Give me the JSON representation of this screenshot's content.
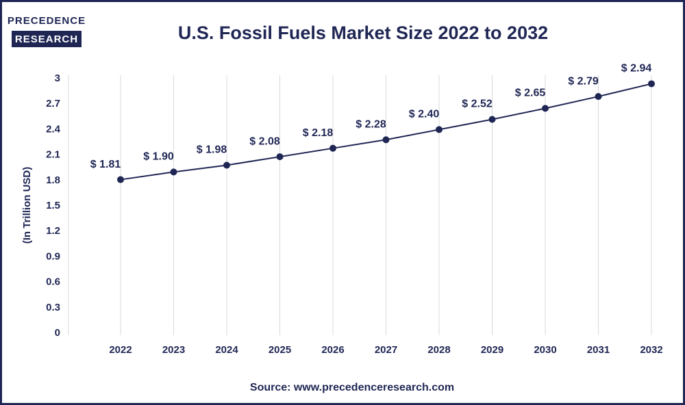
{
  "logo": {
    "top": "PRECEDENCE",
    "bottom": "RESEARCH"
  },
  "source": "Source: www.precedenceresearch.com",
  "chart_data": {
    "type": "line",
    "title": "U.S. Fossil Fuels Market Size 2022 to 2032",
    "y_label": "(In Trillion USD)",
    "categories": [
      "2022",
      "2023",
      "2024",
      "2025",
      "2026",
      "2027",
      "2028",
      "2029",
      "2030",
      "2031",
      "2032"
    ],
    "values": [
      1.81,
      1.9,
      1.98,
      2.08,
      2.18,
      2.28,
      2.4,
      2.52,
      2.65,
      2.79,
      2.94
    ],
    "value_labels": [
      "$ 1.81",
      "$ 1.90",
      "$ 1.98",
      "$ 2.08",
      "$ 2.18",
      "$ 2.28",
      "$ 2.40",
      "$ 2.52",
      "$ 2.65",
      "$ 2.79",
      "$ 2.94"
    ],
    "color": "#1f2654",
    "ylim": [
      0,
      3
    ],
    "yticks": [
      0,
      0.3,
      0.6,
      0.9,
      1.2,
      1.5,
      1.8,
      2.1,
      2.4,
      2.7,
      3
    ],
    "grid": "x"
  }
}
